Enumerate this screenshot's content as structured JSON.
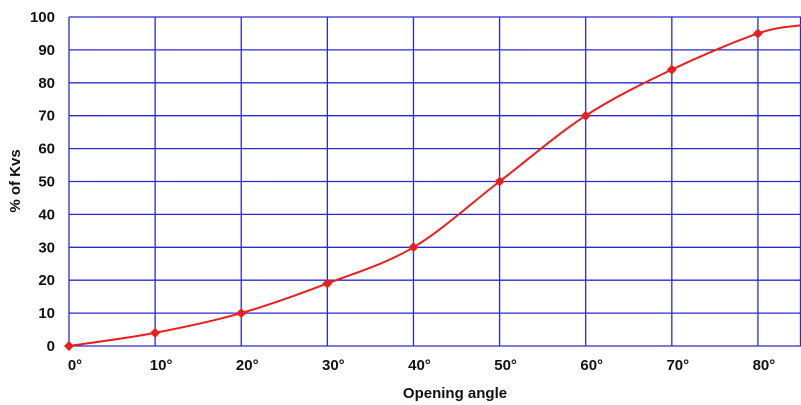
{
  "colors": {
    "grid": "#2b2bcc",
    "line": "#e81f1f",
    "marker": "#e81f1f",
    "background": "#ffffff",
    "text": "#111111"
  },
  "chart_data": {
    "type": "line",
    "title": "",
    "xlabel": "Opening angle",
    "ylabel": "% of Kvs",
    "xlim": [
      0,
      85
    ],
    "ylim": [
      0,
      100
    ],
    "x_ticks": [
      0,
      10,
      20,
      30,
      40,
      50,
      60,
      70,
      80
    ],
    "x_tick_labels": [
      "0°",
      "10°",
      "20°",
      "30°",
      "40°",
      "50°",
      "60°",
      "70°",
      "80°"
    ],
    "y_ticks": [
      0,
      10,
      20,
      30,
      40,
      50,
      60,
      70,
      80,
      90,
      100
    ],
    "y_tick_labels": [
      "0",
      "10",
      "20",
      "30",
      "40",
      "50",
      "60",
      "70",
      "80",
      "90",
      "100"
    ],
    "grid": true,
    "legend": "none",
    "marker_shape": "diamond",
    "series": [
      {
        "x": [
          0,
          10,
          20,
          30,
          40,
          50,
          60,
          70,
          80
        ],
        "y": [
          0,
          4,
          10,
          19,
          30,
          50,
          70,
          84,
          95
        ]
      }
    ],
    "curve_extension": {
      "x": [
        85
      ],
      "y": [
        97.5
      ]
    }
  }
}
